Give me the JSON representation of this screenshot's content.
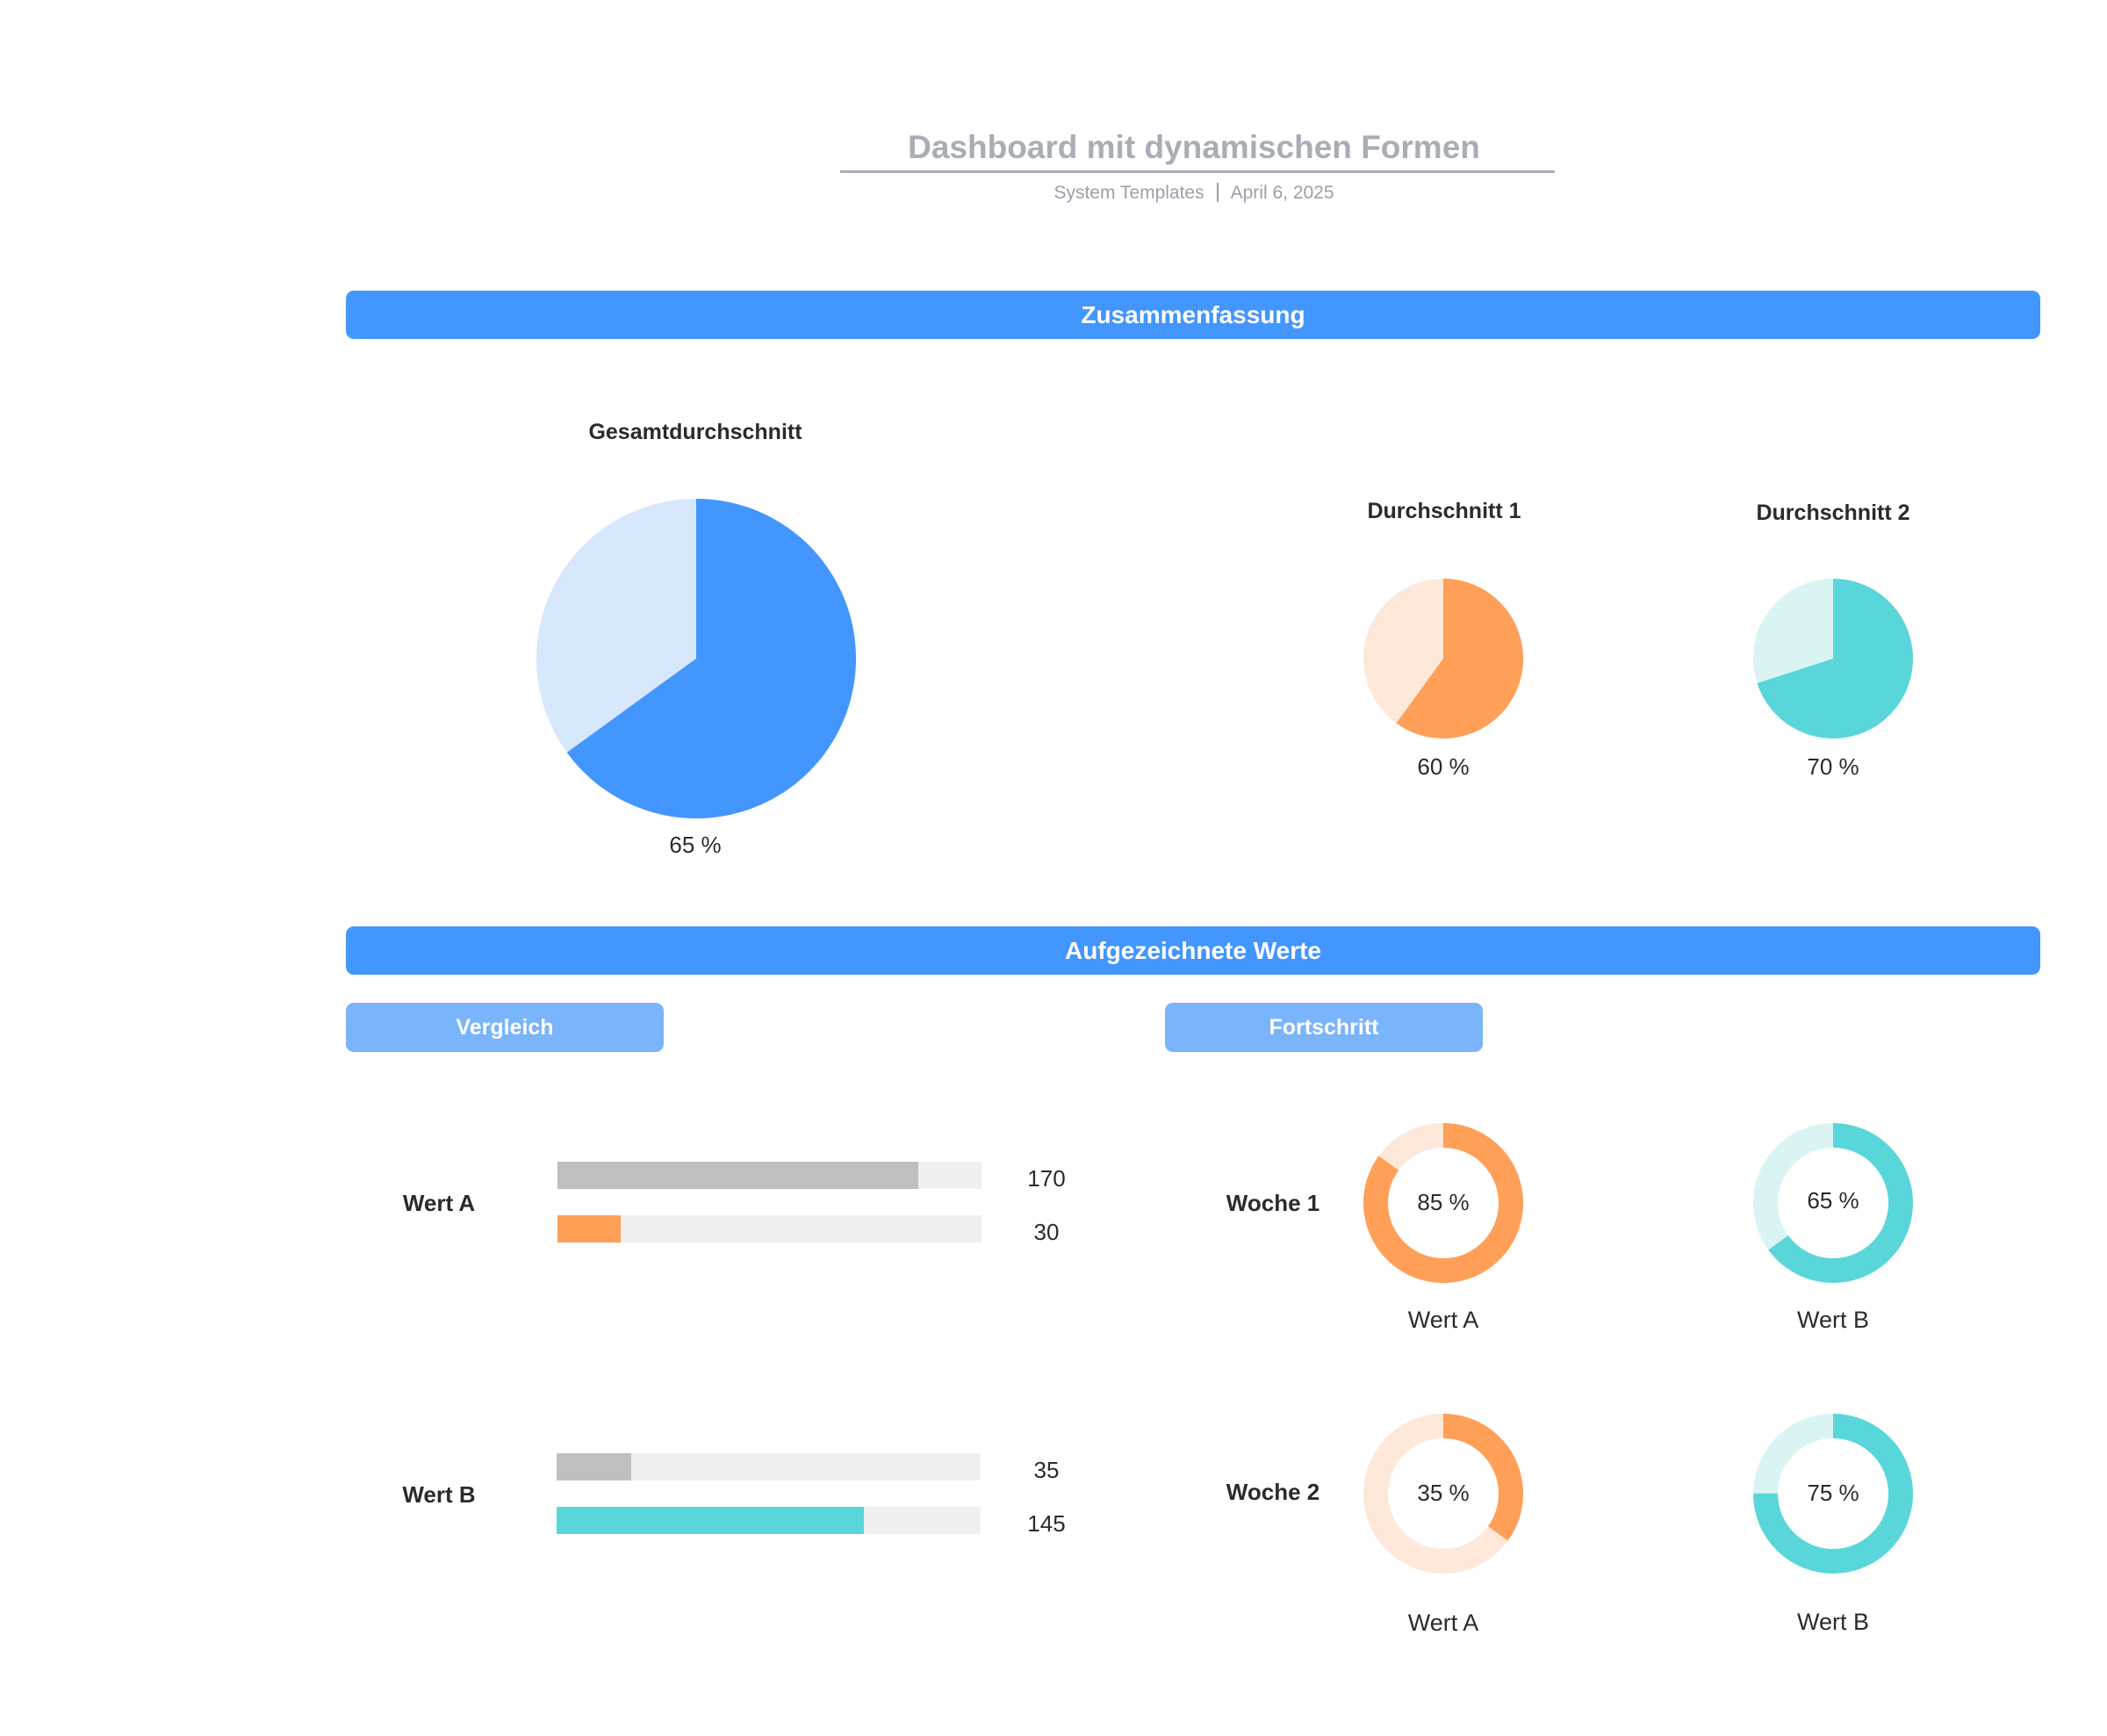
{
  "header": {
    "title": "Dashboard mit dynamischen Formen",
    "source": "System Templates",
    "date": "April 6, 2025"
  },
  "summary_section": {
    "title": "Zusammenfassung",
    "overall": {
      "heading": "Gesamtdurchschnitt",
      "label": "65 %",
      "value": 65
    },
    "avg1": {
      "heading": "Durchschnitt 1",
      "label": "60 %",
      "value": 60
    },
    "avg2": {
      "heading": "Durchschnitt 2",
      "label": "70 %",
      "value": 70
    }
  },
  "records_section": {
    "title": "Aufgezeichnete Werte",
    "comparison": {
      "title": "Vergleich",
      "groups": [
        {
          "label": "Wert A",
          "bars": [
            {
              "value": 170,
              "label": "170",
              "color_key": "gray"
            },
            {
              "value": 30,
              "label": "30",
              "color_key": "orange"
            }
          ]
        },
        {
          "label": "Wert B",
          "bars": [
            {
              "value": 35,
              "label": "35",
              "color_key": "gray"
            },
            {
              "value": 145,
              "label": "145",
              "color_key": "teal"
            }
          ]
        }
      ],
      "scale_max": 200
    },
    "progress": {
      "title": "Fortschritt",
      "weeks": [
        {
          "label": "Woche 1",
          "items": [
            {
              "value": 85,
              "center": "85 %",
              "caption": "Wert A",
              "color_key": "orange"
            },
            {
              "value": 65,
              "center": "65 %",
              "caption": "Wert B",
              "color_key": "teal"
            }
          ]
        },
        {
          "label": "Woche 2",
          "items": [
            {
              "value": 35,
              "center": "35 %",
              "caption": "Wert A",
              "color_key": "orange"
            },
            {
              "value": 75,
              "center": "75 %",
              "caption": "Wert B",
              "color_key": "teal"
            }
          ]
        }
      ]
    }
  },
  "colors": {
    "section_bar": "#4396fd",
    "sub_bar": "#7ab4fb",
    "blue": "#4396fd",
    "blue_light": "#d7e8fd",
    "orange": "#ff9f58",
    "orange_light": "#fee8da",
    "teal": "#59d6d9",
    "teal_light": "#daf4f4",
    "gray": "#bebfc0",
    "track": "#eff0f0"
  }
}
